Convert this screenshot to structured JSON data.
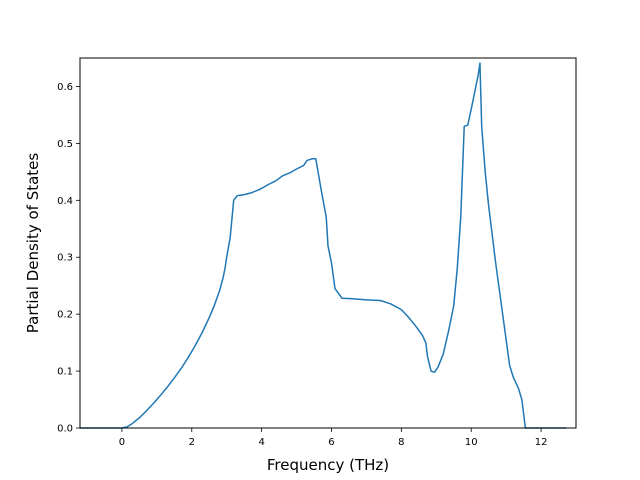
{
  "chart_data": {
    "type": "line",
    "xlabel": "Frequency (THz)",
    "ylabel": "Partial Density of States",
    "xlim": [
      -1.2,
      13.0
    ],
    "ylim": [
      0.0,
      0.65
    ],
    "xticks": [
      0,
      2,
      4,
      6,
      8,
      10,
      12
    ],
    "yticks": [
      0.0,
      0.1,
      0.2,
      0.3,
      0.4,
      0.5,
      0.6
    ],
    "xtick_labels": [
      "0",
      "2",
      "4",
      "6",
      "8",
      "10",
      "12"
    ],
    "ytick_labels": [
      "0.0",
      "0.1",
      "0.2",
      "0.3",
      "0.4",
      "0.5",
      "0.6"
    ],
    "grid": false,
    "color": "#1f77b4",
    "series": [
      {
        "x": [
          -1.2,
          0.0,
          0.15,
          0.3,
          0.5,
          0.7,
          0.9,
          1.1,
          1.3,
          1.5,
          1.7,
          1.9,
          2.1,
          2.3,
          2.5,
          2.65,
          2.8,
          2.9,
          2.95,
          3.0,
          3.1,
          3.2,
          3.3,
          3.5,
          3.7,
          3.9,
          4.0,
          4.2,
          4.4,
          4.6,
          4.8,
          5.0,
          5.2,
          5.3,
          5.4,
          5.45,
          5.55,
          5.7,
          5.85,
          5.9,
          6.0,
          6.1,
          6.3,
          6.6,
          7.0,
          7.4,
          7.7,
          8.0,
          8.2,
          8.4,
          8.6,
          8.7,
          8.75,
          8.85,
          8.95,
          9.05,
          9.2,
          9.35,
          9.5,
          9.6,
          9.7,
          9.75,
          9.8,
          9.9,
          10.0,
          10.1,
          10.2,
          10.25,
          10.3,
          10.4,
          10.5,
          10.6,
          10.7,
          10.8,
          10.9,
          11.0,
          11.1,
          11.2,
          11.35,
          11.45,
          11.55,
          11.6,
          12.0,
          12.7
        ],
        "y": [
          0.0,
          0.0,
          0.002,
          0.008,
          0.018,
          0.03,
          0.043,
          0.057,
          0.072,
          0.088,
          0.105,
          0.124,
          0.145,
          0.168,
          0.194,
          0.216,
          0.242,
          0.265,
          0.28,
          0.3,
          0.335,
          0.4,
          0.408,
          0.41,
          0.413,
          0.418,
          0.421,
          0.428,
          0.434,
          0.443,
          0.448,
          0.455,
          0.461,
          0.47,
          0.472,
          0.473,
          0.473,
          0.42,
          0.37,
          0.32,
          0.29,
          0.245,
          0.228,
          0.227,
          0.225,
          0.224,
          0.218,
          0.208,
          0.195,
          0.18,
          0.163,
          0.15,
          0.125,
          0.1,
          0.098,
          0.107,
          0.13,
          0.17,
          0.215,
          0.28,
          0.37,
          0.45,
          0.53,
          0.532,
          0.56,
          0.59,
          0.62,
          0.641,
          0.53,
          0.45,
          0.39,
          0.34,
          0.29,
          0.245,
          0.2,
          0.155,
          0.11,
          0.09,
          0.07,
          0.05,
          0.0,
          0.0,
          0.0,
          0.0
        ]
      }
    ]
  }
}
